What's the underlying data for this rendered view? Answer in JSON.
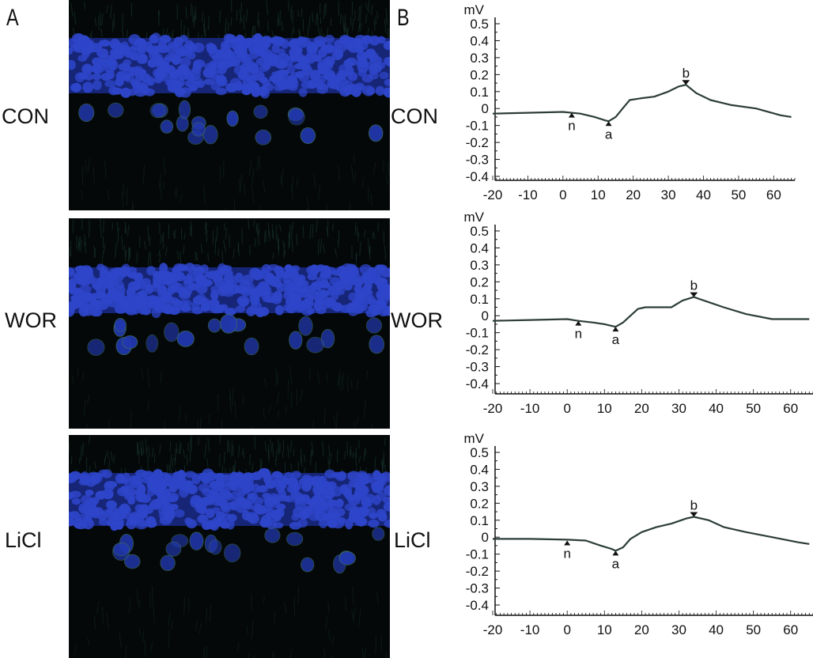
{
  "panels": {
    "a_label": "A",
    "b_label": "B"
  },
  "rows": [
    {
      "label": "CON"
    },
    {
      "label": "WOR"
    },
    {
      "label": "LiCl"
    }
  ],
  "colors": {
    "trace": "#2c3d3a",
    "axis": "#111111",
    "nucleus": "#2e45c9",
    "background_tissue": "#040808"
  },
  "chart_data": [
    {
      "type": "line",
      "title": "",
      "xlabel": "",
      "ylabel": "mV",
      "xlim": [
        -20,
        66
      ],
      "ylim": [
        -0.45,
        0.5
      ],
      "x_ticks": [
        "-20",
        "-10",
        "0",
        "10",
        "20",
        "30",
        "40",
        "50",
        "60"
      ],
      "y_ticks": [
        "0.5",
        "0.4",
        "0.3",
        "0.2",
        "0.1",
        "0",
        "-0.1",
        "-0.2",
        "-0.3",
        "-0.4"
      ],
      "grid": false,
      "series": [
        {
          "x": [
            -20,
            -10,
            0,
            5,
            9,
            12,
            13,
            15,
            17,
            19,
            22,
            26,
            30,
            33,
            35,
            38,
            42,
            48,
            55,
            62,
            65
          ],
          "y": [
            -0.03,
            -0.025,
            -0.02,
            -0.03,
            -0.05,
            -0.07,
            -0.075,
            -0.05,
            0.0,
            0.05,
            0.06,
            0.07,
            0.1,
            0.13,
            0.14,
            0.09,
            0.05,
            0.02,
            0.0,
            -0.04,
            -0.05
          ]
        }
      ],
      "markers": [
        {
          "label": "n",
          "x": 2.5,
          "y": -0.025,
          "direction": "up"
        },
        {
          "label": "a",
          "x": 13,
          "y": -0.075,
          "direction": "up"
        },
        {
          "label": "b",
          "x": 35,
          "y": 0.14,
          "direction": "down"
        }
      ]
    },
    {
      "type": "line",
      "title": "",
      "xlabel": "",
      "ylabel": "mV",
      "xlim": [
        -20,
        66
      ],
      "ylim": [
        -0.45,
        0.5
      ],
      "x_ticks": [
        "-20",
        "-10",
        "0",
        "10",
        "20",
        "30",
        "40",
        "50",
        "60"
      ],
      "y_ticks": [
        "0.5",
        "0.4",
        "0.3",
        "0.2",
        "0.1",
        "0",
        "-0.1",
        "-0.2",
        "-0.3",
        "-0.4"
      ],
      "grid": false,
      "series": [
        {
          "x": [
            -20,
            -10,
            0,
            3,
            7,
            10,
            13,
            15,
            17,
            19,
            21,
            24,
            28,
            31,
            34,
            38,
            42,
            48,
            55,
            62,
            65
          ],
          "y": [
            -0.03,
            -0.025,
            -0.02,
            -0.03,
            -0.04,
            -0.05,
            -0.065,
            -0.04,
            0.0,
            0.04,
            0.05,
            0.05,
            0.05,
            0.09,
            0.11,
            0.08,
            0.05,
            0.01,
            -0.02,
            -0.02,
            -0.02
          ]
        }
      ],
      "markers": [
        {
          "label": "n",
          "x": 3,
          "y": -0.03,
          "direction": "up"
        },
        {
          "label": "a",
          "x": 13,
          "y": -0.065,
          "direction": "up"
        },
        {
          "label": "b",
          "x": 34,
          "y": 0.11,
          "direction": "down"
        }
      ]
    },
    {
      "type": "line",
      "title": "",
      "xlabel": "",
      "ylabel": "mV",
      "xlim": [
        -20,
        66
      ],
      "ylim": [
        -0.45,
        0.5
      ],
      "x_ticks": [
        "-20",
        "-10",
        "0",
        "10",
        "20",
        "30",
        "40",
        "50",
        "60"
      ],
      "y_ticks": [
        "0.5",
        "0.4",
        "0.3",
        "0.2",
        "0.1",
        "0",
        "-0.1",
        "-0.2",
        "-0.3",
        "-0.4"
      ],
      "grid": false,
      "series": [
        {
          "x": [
            -20,
            -10,
            0,
            5,
            9,
            12,
            13,
            15,
            17,
            20,
            24,
            28,
            32,
            34,
            38,
            42,
            48,
            55,
            62,
            65
          ],
          "y": [
            -0.01,
            -0.01,
            -0.015,
            -0.02,
            -0.05,
            -0.07,
            -0.08,
            -0.06,
            -0.01,
            0.03,
            0.06,
            0.08,
            0.11,
            0.12,
            0.1,
            0.06,
            0.03,
            0.0,
            -0.03,
            -0.04
          ]
        }
      ],
      "markers": [
        {
          "label": "n",
          "x": 0,
          "y": -0.02,
          "direction": "up"
        },
        {
          "label": "a",
          "x": 13,
          "y": -0.08,
          "direction": "up"
        },
        {
          "label": "b",
          "x": 34,
          "y": 0.12,
          "direction": "down"
        }
      ]
    }
  ]
}
